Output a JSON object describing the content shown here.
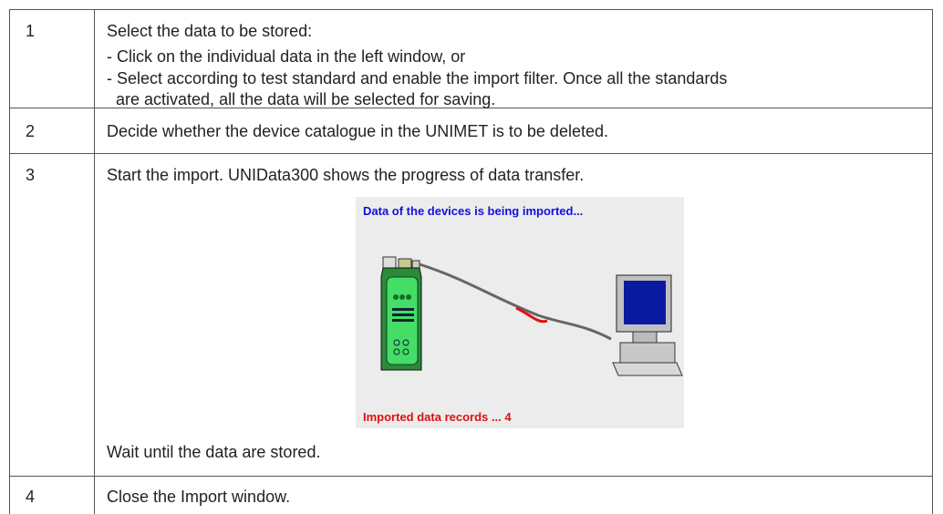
{
  "table": {
    "rows": [
      {
        "step": "1",
        "lines": [
          "Select the data to be stored:",
          "- Click on the individual data in the left window, or",
          "- Select according to test standard and enable the import filter. Once all the standards",
          "are activated, all the data will be selected for saving."
        ]
      },
      {
        "step": "2",
        "lines": [
          "Decide whether the device catalogue in the UNIMET is to be deleted."
        ]
      },
      {
        "step": "3",
        "lines": [
          "Start the import. UNIData300 shows the progress of data transfer."
        ],
        "figure": {
          "heading": "Data of the devices is being imported...",
          "status": "Imported data records ... 4"
        },
        "after": "Wait until the data are stored."
      },
      {
        "step": "4",
        "lines": [
          "Close the Import window."
        ]
      }
    ]
  }
}
